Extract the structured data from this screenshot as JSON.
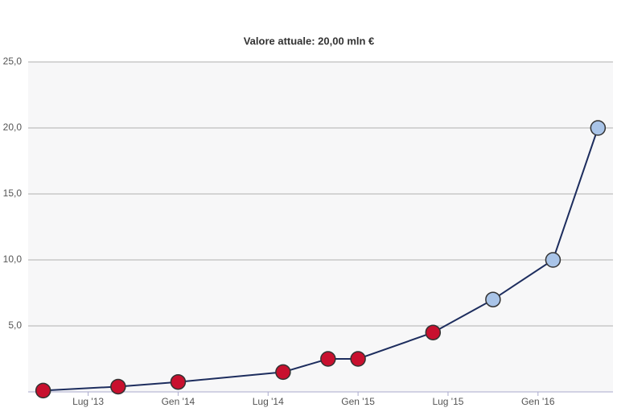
{
  "chart_data": {
    "type": "line",
    "title": "Valore attuale: 20,00 mln €",
    "x": [
      "2013-04",
      "2013-09",
      "2014-01",
      "2014-08",
      "2014-11",
      "2015-01",
      "2015-06",
      "2015-10",
      "2016-02",
      "2016-05"
    ],
    "series": [
      {
        "color": "#1d2d5e",
        "values": [
          0.1,
          0.4,
          0.75,
          1.5,
          2.5,
          2.5,
          4.5,
          7.0,
          10.0,
          20.0
        ]
      }
    ],
    "marker_colors": [
      "#c8102e",
      "#c8102e",
      "#c8102e",
      "#c8102e",
      "#c8102e",
      "#c8102e",
      "#c8102e",
      "#a9c4e8",
      "#a9c4e8",
      "#a9c4e8"
    ],
    "xlim": [
      "2013-03",
      "2016-06"
    ],
    "xticks": [
      {
        "value": "2013-07",
        "label": "Lug '13"
      },
      {
        "value": "2014-01",
        "label": "Gen '14"
      },
      {
        "value": "2014-07",
        "label": "Lug '14"
      },
      {
        "value": "2015-01",
        "label": "Gen '15"
      },
      {
        "value": "2015-07",
        "label": "Lug '15"
      },
      {
        "value": "2016-01",
        "label": "Gen '16"
      }
    ],
    "ylim": [
      0,
      25
    ],
    "yticks": [
      {
        "value": 5,
        "label": "5,0"
      },
      {
        "value": 10,
        "label": "10,0"
      },
      {
        "value": 15,
        "label": "15,0"
      },
      {
        "value": 20,
        "label": "20,0"
      },
      {
        "value": 25,
        "label": "25,0"
      }
    ],
    "grid": true
  }
}
